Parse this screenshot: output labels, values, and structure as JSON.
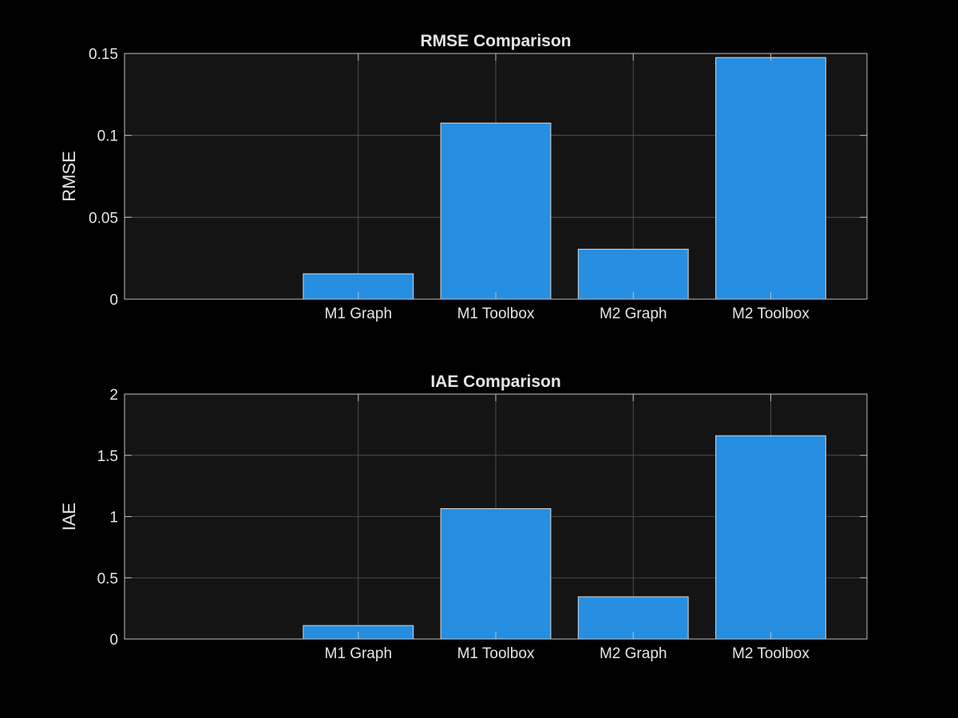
{
  "chart_data": [
    {
      "type": "bar",
      "title": "RMSE Comparison",
      "xlabel": "",
      "ylabel": "RMSE",
      "categories": [
        "M1 Graph",
        "M1 Toolbox",
        "M2 Graph",
        "M2 Toolbox"
      ],
      "values": [
        0.0155,
        0.1075,
        0.0305,
        0.1475
      ],
      "ylim": [
        0,
        0.15
      ],
      "xlim": [
        0.3,
        5.7
      ],
      "yticks": [
        0,
        0.05,
        0.1,
        0.15
      ],
      "ytick_labels": [
        "0",
        "0.05",
        "0.1",
        "0.15"
      ],
      "grid": true,
      "bar_color": "#268ee0"
    },
    {
      "type": "bar",
      "title": "IAE Comparison",
      "xlabel": "",
      "ylabel": "IAE",
      "categories": [
        "M1 Graph",
        "M1 Toolbox",
        "M2 Graph",
        "M2 Toolbox"
      ],
      "values": [
        0.11,
        1.065,
        0.345,
        1.66
      ],
      "ylim": [
        0,
        2
      ],
      "xlim": [
        0.3,
        5.7
      ],
      "yticks": [
        0,
        0.5,
        1,
        1.5,
        2
      ],
      "ytick_labels": [
        "0",
        "0.5",
        "1",
        "1.5",
        "2"
      ],
      "grid": true,
      "bar_color": "#268ee0"
    }
  ]
}
